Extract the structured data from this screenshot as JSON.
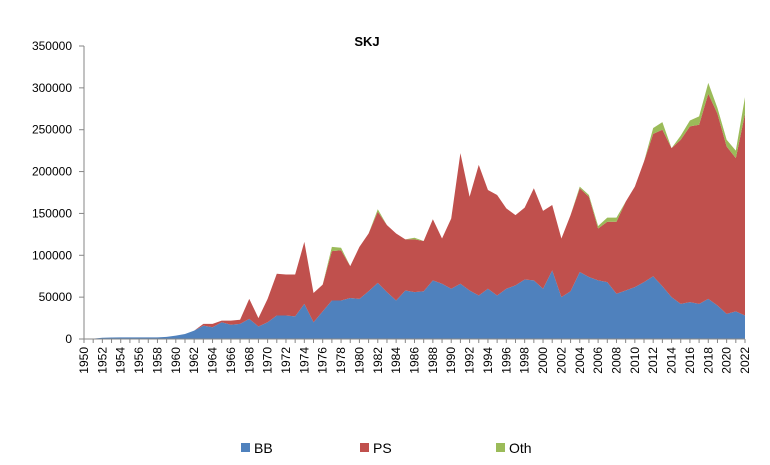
{
  "chart_data": {
    "type": "area",
    "title": "SKJ",
    "xlabel": "",
    "ylabel": "",
    "stacked": true,
    "ylim": [
      0,
      350000
    ],
    "yticks": [
      0,
      50000,
      100000,
      150000,
      200000,
      250000,
      300000,
      350000
    ],
    "ytick_labels": [
      "0",
      "50000",
      "100000",
      "150000",
      "200000",
      "250000",
      "300000",
      "350000"
    ],
    "xlim": [
      1950,
      2022
    ],
    "xtick_labels": [
      "1950",
      "1952",
      "1954",
      "1956",
      "1958",
      "1960",
      "1962",
      "1964",
      "1966",
      "1968",
      "1970",
      "1972",
      "1974",
      "1976",
      "1978",
      "1980",
      "1982",
      "1984",
      "1986",
      "1988",
      "1990",
      "1992",
      "1994",
      "1996",
      "1998",
      "2000",
      "2002",
      "2004",
      "2006",
      "2008",
      "2010",
      "2012",
      "2014",
      "2016",
      "2018",
      "2020",
      "2022"
    ],
    "grid": false,
    "legend_position": "bottom",
    "x": [
      1950,
      1951,
      1952,
      1953,
      1954,
      1955,
      1956,
      1957,
      1958,
      1959,
      1960,
      1961,
      1962,
      1963,
      1964,
      1965,
      1966,
      1967,
      1968,
      1969,
      1970,
      1971,
      1972,
      1973,
      1974,
      1975,
      1976,
      1977,
      1978,
      1979,
      1980,
      1981,
      1982,
      1983,
      1984,
      1985,
      1986,
      1987,
      1988,
      1989,
      1990,
      1991,
      1992,
      1993,
      1994,
      1995,
      1996,
      1997,
      1998,
      1999,
      2000,
      2001,
      2002,
      2003,
      2004,
      2005,
      2006,
      2007,
      2008,
      2009,
      2010,
      2011,
      2012,
      2013,
      2014,
      2015,
      2016,
      2017,
      2018,
      2019,
      2020,
      2021,
      2022
    ],
    "series": [
      {
        "name": "BB",
        "color": "#4f81bd",
        "values": [
          0,
          500,
          1500,
          1800,
          2000,
          2000,
          2000,
          2000,
          2000,
          2500,
          4000,
          6000,
          10000,
          16000,
          14000,
          20000,
          17000,
          18000,
          24000,
          15000,
          20000,
          28000,
          28000,
          27000,
          42000,
          20000,
          33000,
          46000,
          46000,
          49000,
          48000,
          57000,
          67000,
          56000,
          46000,
          58000,
          56000,
          57000,
          70000,
          66000,
          60000,
          66000,
          58000,
          52000,
          60000,
          52000,
          60000,
          64000,
          71000,
          70000,
          60000,
          82000,
          50000,
          57000,
          80000,
          74000,
          70000,
          68000,
          54000,
          58000,
          62000,
          68000,
          75000,
          63000,
          50000,
          42000,
          44000,
          42000,
          48000,
          40000,
          30000,
          33000,
          28000
        ]
      },
      {
        "name": "PS",
        "color": "#c0504d",
        "values": [
          0,
          0,
          0,
          0,
          0,
          0,
          0,
          0,
          0,
          0,
          0,
          0,
          0,
          2000,
          4000,
          2000,
          5000,
          5000,
          24000,
          10000,
          28000,
          50000,
          49000,
          50000,
          74000,
          35000,
          32000,
          59000,
          60000,
          38000,
          62000,
          69000,
          85000,
          80000,
          80000,
          61000,
          63000,
          60000,
          73000,
          54000,
          84000,
          156000,
          112000,
          156000,
          118000,
          120000,
          96000,
          84000,
          86000,
          110000,
          93000,
          78000,
          70000,
          91000,
          100000,
          96000,
          62000,
          72000,
          86000,
          106000,
          120000,
          144000,
          170000,
          187000,
          178000,
          196000,
          210000,
          214000,
          245000,
          229000,
          200000,
          183000,
          241000
        ]
      },
      {
        "name": "Oth",
        "color": "#9bbb59",
        "values": [
          0,
          0,
          0,
          0,
          0,
          0,
          0,
          0,
          0,
          0,
          0,
          0,
          0,
          0,
          0,
          0,
          0,
          0,
          0,
          0,
          0,
          0,
          0,
          0,
          0,
          0,
          0,
          5000,
          3000,
          0,
          0,
          0,
          3000,
          0,
          0,
          0,
          2000,
          0,
          0,
          0,
          0,
          0,
          0,
          0,
          0,
          0,
          0,
          0,
          0,
          0,
          0,
          0,
          0,
          0,
          2000,
          2000,
          3000,
          5000,
          5000,
          0,
          0,
          0,
          7000,
          9000,
          0,
          5000,
          7000,
          10000,
          13000,
          7000,
          8000,
          9000,
          20000
        ]
      }
    ]
  }
}
